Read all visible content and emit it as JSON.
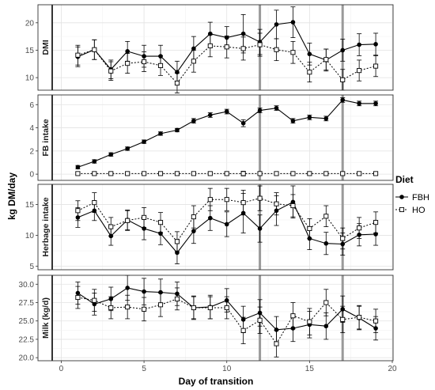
{
  "chart_data": {
    "type": "line",
    "xlabel": "Day of transition",
    "ylabel": "kg DM/day",
    "xlim": [
      -0.5,
      20
    ],
    "x_ticks": [
      0,
      5,
      10,
      15,
      20
    ],
    "x": [
      1,
      2,
      3,
      4,
      5,
      6,
      7,
      8,
      9,
      10,
      11,
      12,
      13,
      14,
      15,
      16,
      17,
      18,
      19
    ],
    "vertical_lines_at": [
      12,
      17
    ],
    "grid": true,
    "legend": {
      "title": "Diet",
      "position": "right",
      "entries": [
        {
          "name": "FBH",
          "marker": "filled-circle",
          "line": "solid"
        },
        {
          "name": "HO",
          "marker": "open-square",
          "line": "dotted"
        }
      ]
    },
    "panels": [
      {
        "strip_label": "DMI",
        "ylim": [
          8,
          23
        ],
        "y_ticks": [
          10,
          15,
          20
        ],
        "series": [
          {
            "name": "FBH",
            "values": [
              13.8,
              15.1,
              11.5,
              14.8,
              13.9,
              13.9,
              11.0,
              15.3,
              18.0,
              17.3,
              18.0,
              16.5,
              19.7,
              20.1,
              14.3,
              13.2,
              15.0,
              16.0,
              16.1
            ],
            "errors": [
              1.8,
              1.8,
              1.7,
              1.8,
              2.0,
              2.0,
              2.0,
              2.2,
              2.1,
              2.0,
              3.5,
              2.3,
              2.6,
              2.8,
              2.0,
              2.0,
              2.0,
              2.0,
              2.0
            ]
          },
          {
            "name": "HO",
            "values": [
              14.1,
              15.1,
              11.2,
              12.6,
              12.9,
              12.2,
              9.0,
              13.0,
              15.8,
              15.6,
              15.3,
              16.0,
              15.1,
              14.6,
              11.0,
              13.3,
              9.6,
              11.3,
              12.1
            ],
            "errors": [
              1.8,
              1.8,
              1.7,
              1.8,
              1.8,
              1.8,
              1.8,
              2.0,
              2.0,
              2.0,
              2.1,
              2.1,
              2.0,
              2.0,
              1.8,
              1.9,
              1.9,
              1.9,
              1.9
            ]
          }
        ]
      },
      {
        "strip_label": "FB intake",
        "ylim": [
          -0.4,
          6.7
        ],
        "y_ticks": [
          0,
          2,
          4,
          6
        ],
        "series": [
          {
            "name": "FBH",
            "values": [
              0.6,
              1.1,
              1.7,
              2.2,
              2.8,
              3.5,
              3.8,
              4.6,
              5.1,
              5.4,
              4.4,
              5.5,
              5.7,
              4.6,
              4.9,
              4.8,
              6.4,
              6.1,
              6.1
            ],
            "errors": [
              0.15,
              0.15,
              0.15,
              0.15,
              0.15,
              0.15,
              0.15,
              0.2,
              0.2,
              0.2,
              0.3,
              0.2,
              0.2,
              0.2,
              0.2,
              0.2,
              0.2,
              0.2,
              0.2
            ]
          },
          {
            "name": "HO",
            "values": [
              0.05,
              0.05,
              0.05,
              0.05,
              0.05,
              0.05,
              0.05,
              0.05,
              0.05,
              0.05,
              0.05,
              0.05,
              0.05,
              0.05,
              0.05,
              0.05,
              0.05,
              0.05,
              0.05
            ],
            "errors": [
              0.1,
              0.1,
              0.1,
              0.1,
              0.1,
              0.1,
              0.1,
              0.1,
              0.1,
              0.1,
              0.2,
              0.1,
              0.1,
              0.1,
              0.1,
              0.1,
              0.1,
              0.1,
              0.1
            ]
          }
        ]
      },
      {
        "strip_label": "Herbage intake",
        "ylim": [
          4.7,
          18
        ],
        "y_ticks": [
          5,
          10,
          15
        ],
        "series": [
          {
            "name": "FBH",
            "values": [
              12.9,
              14.0,
              9.9,
              12.5,
              11.1,
              10.3,
              7.2,
              10.7,
              12.8,
              11.8,
              13.6,
              11.1,
              14.0,
              15.4,
              9.5,
              8.7,
              8.6,
              10.1,
              10.2
            ],
            "errors": [
              1.6,
              1.6,
              1.5,
              1.6,
              1.8,
              1.8,
              1.8,
              2.0,
              2.0,
              2.0,
              3.2,
              2.2,
              2.4,
              2.6,
              1.8,
              1.8,
              1.8,
              1.8,
              1.8
            ]
          },
          {
            "name": "HO",
            "values": [
              14.0,
              15.3,
              11.4,
              12.4,
              12.9,
              12.1,
              9.0,
              13.0,
              15.8,
              15.8,
              15.3,
              16.0,
              15.1,
              14.8,
              11.1,
              13.1,
              9.5,
              11.2,
              12.1
            ],
            "errors": [
              1.6,
              1.6,
              1.5,
              1.6,
              1.6,
              1.6,
              1.6,
              1.8,
              1.8,
              1.8,
              2.0,
              2.0,
              1.8,
              1.8,
              1.6,
              1.7,
              1.7,
              1.7,
              1.7
            ]
          }
        ]
      },
      {
        "strip_label": "Milk (kg/d)",
        "ylim": [
          19.8,
          31
        ],
        "y_ticks": [
          20.0,
          22.5,
          25.0,
          27.5,
          30.0
        ],
        "y_tick_labels": [
          "20.0",
          "22.5",
          "25.0",
          "27.5",
          "30.0"
        ],
        "series": [
          {
            "name": "FBH",
            "values": [
              28.8,
              27.3,
              28.0,
              29.5,
              29.0,
              28.9,
              28.7,
              26.8,
              26.9,
              27.8,
              25.2,
              26.1,
              23.8,
              24.0,
              24.5,
              24.3,
              26.6,
              25.4,
              24.0
            ],
            "errors": [
              1.5,
              1.5,
              1.6,
              1.7,
              1.8,
              1.8,
              1.6,
              1.6,
              1.6,
              1.6,
              1.8,
              1.8,
              1.8,
              1.8,
              1.8,
              1.8,
              1.8,
              1.6,
              1.6
            ]
          },
          {
            "name": "HO",
            "values": [
              28.2,
              27.8,
              26.8,
              26.9,
              26.6,
              27.2,
              28.0,
              26.8,
              26.8,
              26.8,
              23.7,
              25.1,
              21.9,
              25.7,
              24.9,
              27.5,
              25.2,
              25.5,
              25.0
            ],
            "errors": [
              1.5,
              1.5,
              1.5,
              1.6,
              1.6,
              1.6,
              1.5,
              1.5,
              1.5,
              1.5,
              1.8,
              1.8,
              1.8,
              1.8,
              1.8,
              1.8,
              1.8,
              1.6,
              1.6
            ]
          }
        ]
      }
    ]
  }
}
